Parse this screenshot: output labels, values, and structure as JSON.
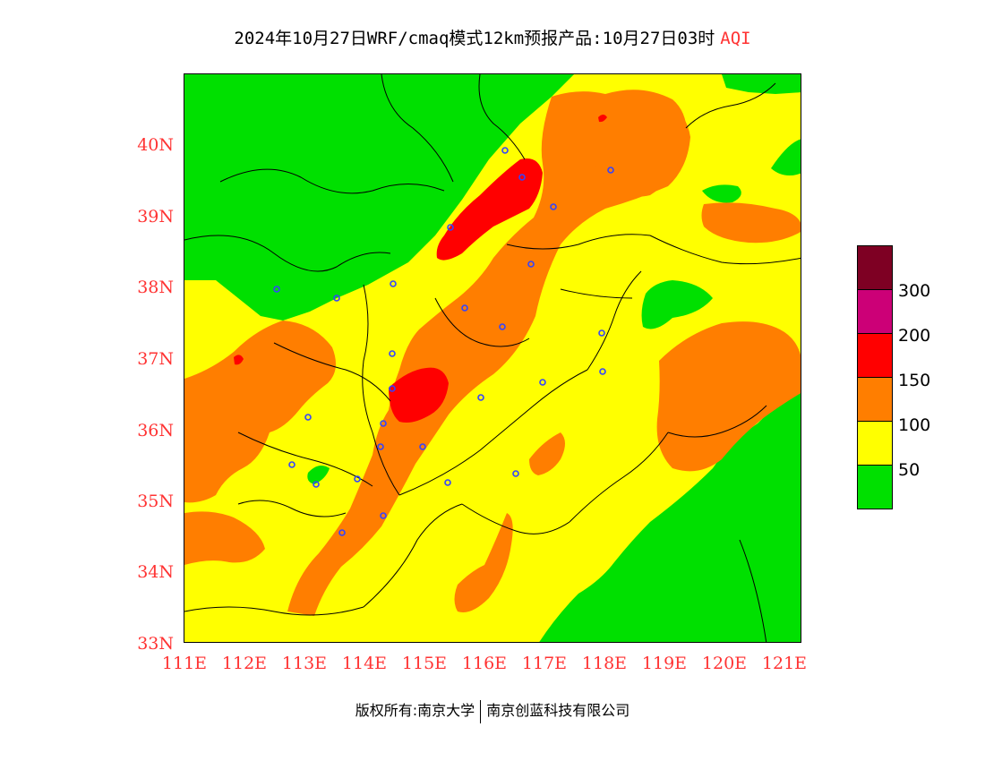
{
  "title": {
    "main": "2024年10月27日WRF/cmaq模式12km预报产品:10月27日03时",
    "product": "AQI"
  },
  "colors": {
    "good": "#00e000",
    "moderate": "#ffff00",
    "usg": "#ff7e00",
    "unhealthy": "#ff0000",
    "very_unhealthy": "#cc0077",
    "hazardous": "#7e0023",
    "axis_label": "#ff3333",
    "station": "#3344ff"
  },
  "axes": {
    "lat_labels": [
      "40N",
      "39N",
      "38N",
      "37N",
      "36N",
      "35N",
      "34N",
      "33N"
    ],
    "lon_labels": [
      "111E",
      "112E",
      "113E",
      "114E",
      "115E",
      "116E",
      "117E",
      "118E",
      "119E",
      "120E",
      "121E"
    ]
  },
  "legend": {
    "levels": [
      "300",
      "200",
      "150",
      "100",
      "50"
    ],
    "colors": [
      "#7e0023",
      "#cc0077",
      "#ff0000",
      "#ff7e00",
      "#ffff00",
      "#00e000"
    ]
  },
  "footer": {
    "left": "版权所有:南京大学",
    "right": "南京创蓝科技有限公司"
  }
}
